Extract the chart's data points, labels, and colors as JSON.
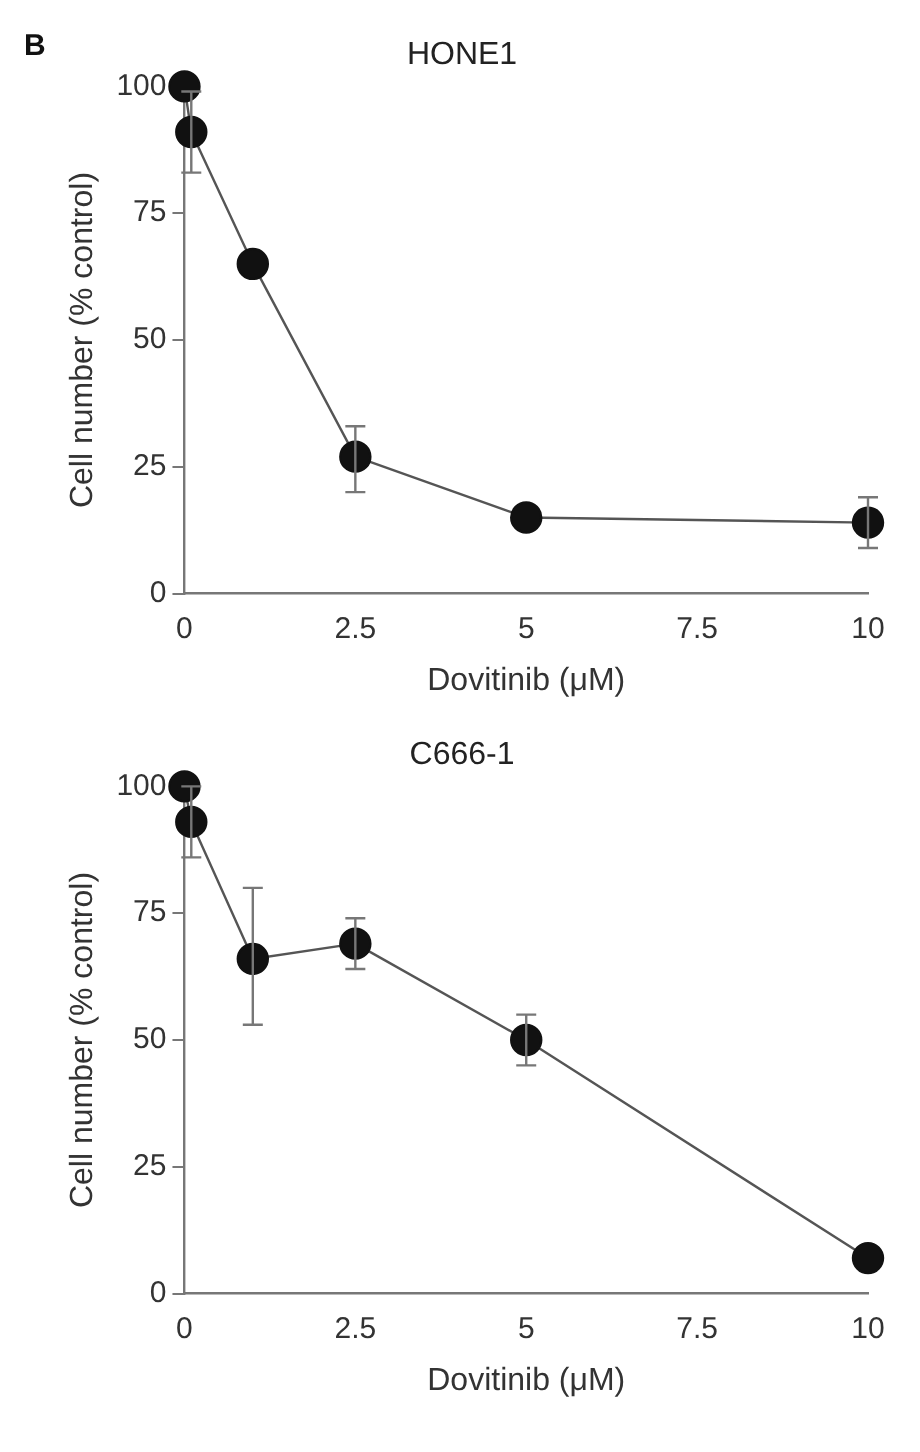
{
  "chart_data": [
    {
      "type": "line",
      "title": "HONE1",
      "xlabel": "Dovitinib (μM)",
      "ylabel": "Cell number (% control)",
      "annotations": [
        "B"
      ],
      "x": [
        0,
        0.1,
        1,
        2.5,
        5,
        10
      ],
      "series": [
        {
          "color": "#111111",
          "values": [
            100,
            91,
            65,
            27,
            15,
            14
          ],
          "errors": [
            null,
            8,
            null,
            [
              20,
              33
            ],
            null,
            [
              9,
              19
            ]
          ]
        }
      ],
      "xlim": [
        0,
        10
      ],
      "xticks": [
        0,
        2.5,
        5,
        7.5,
        10
      ],
      "ylim": [
        0,
        100
      ],
      "yticks": [
        0,
        25,
        50,
        75,
        100
      ],
      "grid": false,
      "legend": false,
      "marker": "circle",
      "line_style": "solid"
    },
    {
      "type": "line",
      "title": "C666-1",
      "xlabel": "Dovitinib (μM)",
      "ylabel": "Cell number (% control)",
      "x": [
        0,
        0.1,
        1,
        2.5,
        5,
        10
      ],
      "series": [
        {
          "color": "#111111",
          "values": [
            100,
            93,
            66,
            69,
            50,
            7
          ],
          "errors": [
            null,
            7,
            [
              53,
              80
            ],
            [
              64,
              74
            ],
            [
              45,
              55
            ],
            null
          ]
        }
      ],
      "xlim": [
        0,
        10
      ],
      "xticks": [
        0,
        2.5,
        5,
        7.5,
        10
      ],
      "ylim": [
        0,
        100
      ],
      "yticks": [
        0,
        25,
        50,
        75,
        100
      ],
      "grid": false,
      "legend": false,
      "marker": "circle",
      "line_style": "solid"
    }
  ]
}
